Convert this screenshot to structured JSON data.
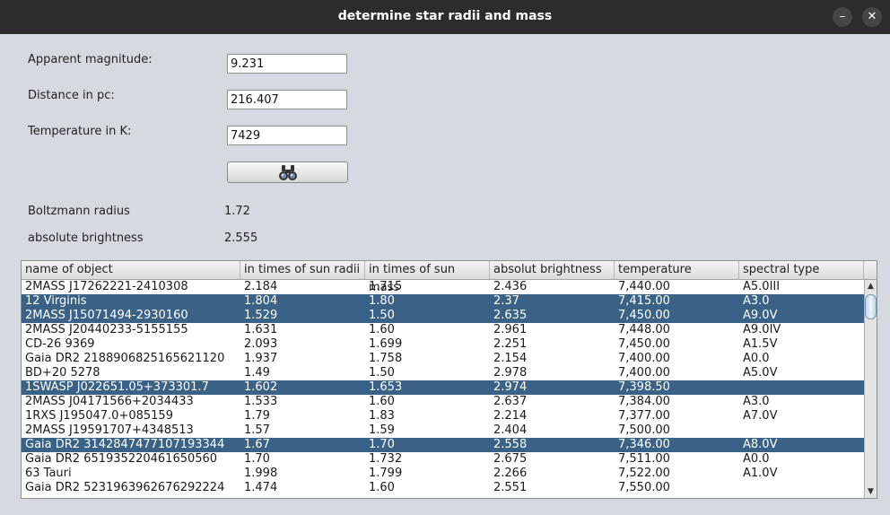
{
  "window": {
    "title": "determine star radii and mass",
    "minimize_glyph": "–",
    "close_glyph": "✕"
  },
  "form": {
    "magnitude_label": "Apparent magnitude:",
    "magnitude_value": "9.231",
    "distance_label": "Distance in pc:",
    "distance_value": "216.407",
    "temperature_label": "Temperature in K:",
    "temperature_value": "7429",
    "search_icon": "binoculars-icon"
  },
  "results": {
    "radius_label": "Boltzmann radius",
    "radius_value": "1.72",
    "brightness_label": "absolute brightness",
    "brightness_value": "2.555"
  },
  "table": {
    "columns": [
      "name of object",
      "in times of sun radii",
      "in times of sun mass",
      "absolut brightness",
      "temperature",
      "spectral type"
    ],
    "rows": [
      {
        "cells": [
          "2MASS J17262221-2410308",
          "2.184",
          "1.715",
          "2.436",
          "7,440.00",
          "A5.0III"
        ],
        "selected": false
      },
      {
        "cells": [
          "12 Virginis",
          "1.804",
          "1.80",
          "2.37",
          "7,415.00",
          "A3.0"
        ],
        "selected": true
      },
      {
        "cells": [
          "2MASS J15071494-2930160",
          "1.529",
          "1.50",
          "2.635",
          "7,450.00",
          "A9.0V"
        ],
        "selected": true
      },
      {
        "cells": [
          "2MASS J20440233-5155155",
          "1.631",
          "1.60",
          "2.961",
          "7,448.00",
          "A9.0IV"
        ],
        "selected": false
      },
      {
        "cells": [
          "CD-26 9369",
          "2.093",
          "1.699",
          "2.251",
          "7,450.00",
          "A1.5V"
        ],
        "selected": false
      },
      {
        "cells": [
          "Gaia DR2 2188906825165621120",
          "1.937",
          "1.758",
          "2.154",
          "7,400.00",
          "A0.0"
        ],
        "selected": false
      },
      {
        "cells": [
          "BD+20 5278",
          "1.49",
          "1.50",
          "2.978",
          "7,400.00",
          "A5.0V"
        ],
        "selected": false
      },
      {
        "cells": [
          "1SWASP J022651.05+373301.7",
          "1.602",
          "1.653",
          "2.974",
          "7,398.50",
          ""
        ],
        "selected": true
      },
      {
        "cells": [
          "2MASS J04171566+2034433",
          "1.533",
          "1.60",
          "2.637",
          "7,384.00",
          "A3.0"
        ],
        "selected": false
      },
      {
        "cells": [
          "1RXS J195047.0+085159",
          "1.79",
          "1.83",
          "2.214",
          "7,377.00",
          "A7.0V"
        ],
        "selected": false
      },
      {
        "cells": [
          "2MASS J19591707+4348513",
          "1.57",
          "1.59",
          "2.404",
          "7,500.00",
          ""
        ],
        "selected": false
      },
      {
        "cells": [
          "Gaia DR2 3142847477107193344",
          "1.67",
          "1.70",
          "2.558",
          "7,346.00",
          "A8.0V"
        ],
        "selected": true
      },
      {
        "cells": [
          "Gaia DR2 651935220461650560",
          "1.70",
          "1.732",
          "2.675",
          "7,511.00",
          "A0.0"
        ],
        "selected": false
      },
      {
        "cells": [
          "63 Tauri",
          "1.998",
          "1.799",
          "2.266",
          "7,522.00",
          "A1.0V"
        ],
        "selected": false
      },
      {
        "cells": [
          "Gaia DR2 5231963962676292224",
          "1.474",
          "1.60",
          "2.551",
          "7,550.00",
          ""
        ],
        "selected": false
      }
    ],
    "scroll_up_glyph": "▲",
    "scroll_down_glyph": "▼"
  }
}
